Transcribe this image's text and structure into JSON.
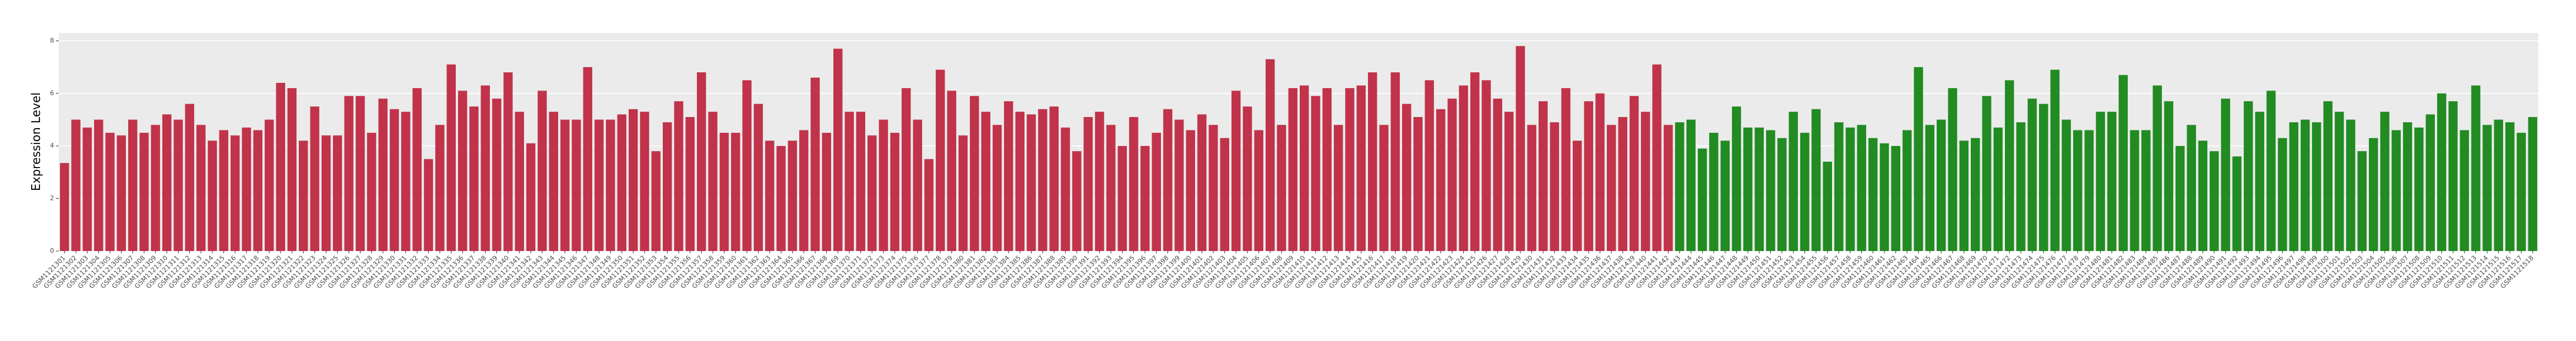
{
  "chart_data": {
    "type": "bar",
    "y_label": "Expression Level",
    "ylim": [
      0,
      8.3
    ],
    "yticks": [
      0,
      2,
      4,
      6,
      8
    ],
    "grid": true,
    "categories": [
      "GSM1121301",
      "GSM1121302",
      "GSM1121303",
      "GSM1121304",
      "GSM1121305",
      "GSM1121306",
      "GSM1121307",
      "GSM1121308",
      "GSM1121309",
      "GSM1121310",
      "GSM1121311",
      "GSM1121312",
      "GSM1121313",
      "GSM1121314",
      "GSM1121315",
      "GSM1121316",
      "GSM1121317",
      "GSM1121318",
      "GSM1121319",
      "GSM1121320",
      "GSM1121321",
      "GSM1121322",
      "GSM1121323",
      "GSM1121324",
      "GSM1121325",
      "GSM1121326",
      "GSM1121327",
      "GSM1121328",
      "GSM1121329",
      "GSM1121330",
      "GSM1121331",
      "GSM1121332",
      "GSM1121333",
      "GSM1121334",
      "GSM1121335",
      "GSM1121336",
      "GSM1121337",
      "GSM1121338",
      "GSM1121339",
      "GSM1121340",
      "GSM1121341",
      "GSM1121342",
      "GSM1121343",
      "GSM1121344",
      "GSM1121345",
      "GSM1121346",
      "GSM1121347",
      "GSM1121348",
      "GSM1121349",
      "GSM1121350",
      "GSM1121351",
      "GSM1121352",
      "GSM1121353",
      "GSM1121354",
      "GSM1121355",
      "GSM1121356",
      "GSM1121357",
      "GSM1121358",
      "GSM1121359",
      "GSM1121360",
      "GSM1121361",
      "GSM1121362",
      "GSM1121363",
      "GSM1121364",
      "GSM1121365",
      "GSM1121366",
      "GSM1121367",
      "GSM1121368",
      "GSM1121369",
      "GSM1121370",
      "GSM1121371",
      "GSM1121372",
      "GSM1121373",
      "GSM1121374",
      "GSM1121375",
      "GSM1121376",
      "GSM1121377",
      "GSM1121378",
      "GSM1121379",
      "GSM1121380",
      "GSM1121381",
      "GSM1121382",
      "GSM1121383",
      "GSM1121384",
      "GSM1121385",
      "GSM1121386",
      "GSM1121387",
      "GSM1121388",
      "GSM1121389",
      "GSM1121390",
      "GSM1121391",
      "GSM1121392",
      "GSM1121393",
      "GSM1121394",
      "GSM1121395",
      "GSM1121396",
      "GSM1121397",
      "GSM1121398",
      "GSM1121399",
      "GSM1121400",
      "GSM1121401",
      "GSM1121402",
      "GSM1121403",
      "GSM1121404",
      "GSM1121405",
      "GSM1121406",
      "GSM1121407",
      "GSM1121408",
      "GSM1121409",
      "GSM1121410",
      "GSM1121411",
      "GSM1121412",
      "GSM1121413",
      "GSM1121414",
      "GSM1121415",
      "GSM1121416",
      "GSM1121417",
      "GSM1121418",
      "GSM1121419",
      "GSM1121420",
      "GSM1121421",
      "GSM1121422",
      "GSM1121423",
      "GSM1121424",
      "GSM1121425",
      "GSM1121426",
      "GSM1121427",
      "GSM1121428",
      "GSM1121429",
      "GSM1121430",
      "GSM1121431",
      "GSM1121432",
      "GSM1121433",
      "GSM1121434",
      "GSM1121435",
      "GSM1121436",
      "GSM1121437",
      "GSM1121438",
      "GSM1121439",
      "GSM1121440",
      "GSM1121441",
      "GSM1121442",
      "GSM1121443",
      "GSM1121444",
      "GSM1121445",
      "GSM1121446",
      "GSM1121447",
      "GSM1121448",
      "GSM1121449",
      "GSM1121450",
      "GSM1121451",
      "GSM1121452",
      "GSM1121453",
      "GSM1121454",
      "GSM1121455",
      "GSM1121456",
      "GSM1121457",
      "GSM1121458",
      "GSM1121459",
      "GSM1121460",
      "GSM1121461",
      "GSM1121462",
      "GSM1121463",
      "GSM1121464",
      "GSM1121465",
      "GSM1121466",
      "GSM1121467",
      "GSM1121468",
      "GSM1121469",
      "GSM1121470",
      "GSM1121471",
      "GSM1121472",
      "GSM1121473",
      "GSM1121474",
      "GSM1121475",
      "GSM1121476",
      "GSM1121477",
      "GSM1121478",
      "GSM1121479",
      "GSM1121480",
      "GSM1121481",
      "GSM1121482",
      "GSM1121483",
      "GSM1121484",
      "GSM1121485",
      "GSM1121486",
      "GSM1121487",
      "GSM1121488",
      "GSM1121489",
      "GSM1121490",
      "GSM1121491",
      "GSM1121492",
      "GSM1121493",
      "GSM1121494",
      "GSM1121495",
      "GSM1121496",
      "GSM1121497",
      "GSM1121498",
      "GSM1121499",
      "GSM1121500",
      "GSM1121501",
      "GSM1121502",
      "GSM1121503",
      "GSM1121504",
      "GSM1121505",
      "GSM1121506",
      "GSM1121507",
      "GSM1121508",
      "GSM1121509",
      "GSM1121510",
      "GSM1121511",
      "GSM1121512",
      "GSM1121513",
      "GSM1121514",
      "GSM1121515",
      "GSM1121516",
      "GSM1121517",
      "GSM1121518"
    ],
    "values": [
      3.35,
      5.0,
      4.7,
      5.0,
      4.5,
      4.4,
      5.0,
      4.5,
      4.8,
      5.2,
      5.0,
      5.6,
      4.8,
      4.2,
      4.6,
      4.4,
      4.7,
      4.6,
      5.0,
      6.4,
      6.2,
      4.2,
      5.5,
      4.4,
      4.4,
      5.9,
      5.9,
      4.5,
      5.8,
      5.4,
      5.3,
      6.2,
      3.5,
      4.8,
      7.1,
      6.1,
      5.5,
      6.3,
      5.8,
      6.8,
      5.3,
      4.1,
      6.1,
      5.3,
      5.0,
      5.0,
      7.0,
      5.0,
      5.0,
      5.2,
      5.4,
      5.3,
      3.8,
      4.9,
      5.7,
      5.1,
      6.8,
      5.3,
      4.5,
      4.5,
      6.5,
      5.6,
      4.2,
      4.0,
      4.2,
      4.6,
      6.6,
      4.5,
      7.7,
      5.3,
      5.3,
      4.4,
      5.0,
      4.5,
      6.2,
      5.0,
      3.5,
      6.9,
      6.1,
      4.4,
      5.9,
      5.3,
      4.8,
      5.7,
      5.3,
      5.2,
      5.4,
      5.5,
      4.7,
      3.8,
      5.1,
      5.3,
      4.8,
      4.0,
      5.1,
      4.0,
      4.5,
      5.4,
      5.0,
      4.6,
      5.2,
      4.8,
      4.3,
      6.1,
      5.5,
      4.6,
      7.3,
      4.8,
      6.2,
      6.3,
      5.9,
      6.2,
      4.8,
      6.2,
      6.3,
      6.8,
      4.8,
      6.8,
      5.6,
      5.1,
      6.5,
      5.4,
      5.8,
      6.3,
      6.8,
      6.5,
      5.8,
      5.3,
      7.8,
      4.8,
      5.7,
      4.9,
      6.2,
      4.2,
      5.7,
      6.0,
      4.8,
      5.1,
      5.9,
      5.3,
      7.1,
      4.8,
      4.9,
      5.0,
      3.9,
      4.5,
      4.2,
      5.5,
      4.7,
      4.7,
      4.6,
      4.3,
      5.3,
      4.5,
      5.4,
      3.4,
      4.9,
      4.7,
      4.8,
      4.3,
      4.1,
      4.0,
      4.6,
      7.0,
      4.8,
      5.0,
      6.2,
      4.2,
      4.3,
      5.9,
      4.7,
      6.5,
      4.9,
      5.8,
      5.6,
      6.9,
      5.0,
      4.6,
      4.6,
      5.3,
      5.3,
      6.7,
      4.6,
      4.6,
      6.3,
      5.7,
      4.0,
      4.8,
      4.2,
      3.8,
      5.8,
      3.6,
      5.7,
      5.3,
      6.1,
      4.3,
      4.9,
      5.0,
      4.9,
      5.7,
      5.3,
      5.0,
      3.8,
      4.3,
      5.3,
      4.6,
      4.9,
      4.7,
      5.2,
      6.0,
      5.7,
      4.6,
      6.3,
      4.8,
      5.0,
      4.9,
      4.5,
      5.1
    ],
    "colors": [
      "#c0334a",
      "#c0334a",
      "#c0334a",
      "#c0334a",
      "#c0334a",
      "#c0334a",
      "#c0334a",
      "#c0334a",
      "#c0334a",
      "#c0334a",
      "#c0334a",
      "#c0334a",
      "#c0334a",
      "#c0334a",
      "#c0334a",
      "#c0334a",
      "#c0334a",
      "#c0334a",
      "#c0334a",
      "#c0334a",
      "#c0334a",
      "#c0334a",
      "#c0334a",
      "#c0334a",
      "#c0334a",
      "#c0334a",
      "#c0334a",
      "#c0334a",
      "#c0334a",
      "#c0334a",
      "#c0334a",
      "#c0334a",
      "#c0334a",
      "#c0334a",
      "#c0334a",
      "#c0334a",
      "#c0334a",
      "#c0334a",
      "#c0334a",
      "#c0334a",
      "#c0334a",
      "#c0334a",
      "#c0334a",
      "#c0334a",
      "#c0334a",
      "#c0334a",
      "#c0334a",
      "#c0334a",
      "#c0334a",
      "#c0334a",
      "#c0334a",
      "#c0334a",
      "#c0334a",
      "#c0334a",
      "#c0334a",
      "#c0334a",
      "#c0334a",
      "#c0334a",
      "#c0334a",
      "#c0334a",
      "#c0334a",
      "#c0334a",
      "#c0334a",
      "#c0334a",
      "#c0334a",
      "#c0334a",
      "#c0334a",
      "#c0334a",
      "#c0334a",
      "#c0334a",
      "#c0334a",
      "#c0334a",
      "#c0334a",
      "#c0334a",
      "#c0334a",
      "#c0334a",
      "#c0334a",
      "#c0334a",
      "#c0334a",
      "#c0334a",
      "#c0334a",
      "#c0334a",
      "#c0334a",
      "#c0334a",
      "#c0334a",
      "#c0334a",
      "#c0334a",
      "#c0334a",
      "#c0334a",
      "#c0334a",
      "#c0334a",
      "#c0334a",
      "#c0334a",
      "#c0334a",
      "#c0334a",
      "#c0334a",
      "#c0334a",
      "#c0334a",
      "#c0334a",
      "#c0334a",
      "#c0334a",
      "#c0334a",
      "#c0334a",
      "#c0334a",
      "#c0334a",
      "#c0334a",
      "#c0334a",
      "#c0334a",
      "#c0334a",
      "#c0334a",
      "#c0334a",
      "#c0334a",
      "#c0334a",
      "#c0334a",
      "#c0334a",
      "#c0334a",
      "#c0334a",
      "#c0334a",
      "#c0334a",
      "#c0334a",
      "#c0334a",
      "#c0334a",
      "#c0334a",
      "#c0334a",
      "#c0334a",
      "#c0334a",
      "#c0334a",
      "#c0334a",
      "#c0334a",
      "#c0334a",
      "#c0334a",
      "#c0334a",
      "#c0334a",
      "#c0334a",
      "#c0334a",
      "#c0334a",
      "#c0334a",
      "#c0334a",
      "#c0334a",
      "#c0334a",
      "#c0334a",
      "#c0334a",
      "#228b22",
      "#228b22",
      "#228b22",
      "#228b22",
      "#228b22",
      "#228b22",
      "#228b22",
      "#228b22",
      "#228b22",
      "#228b22",
      "#228b22",
      "#228b22",
      "#228b22",
      "#228b22",
      "#228b22",
      "#228b22",
      "#228b22",
      "#228b22",
      "#228b22",
      "#228b22",
      "#228b22",
      "#228b22",
      "#228b22",
      "#228b22",
      "#228b22",
      "#228b22",
      "#228b22",
      "#228b22",
      "#228b22",
      "#228b22",
      "#228b22",
      "#228b22",
      "#228b22",
      "#228b22",
      "#228b22",
      "#228b22",
      "#228b22",
      "#228b22",
      "#228b22",
      "#228b22",
      "#228b22",
      "#228b22",
      "#228b22",
      "#228b22",
      "#228b22",
      "#228b22",
      "#228b22",
      "#228b22",
      "#228b22",
      "#228b22",
      "#228b22",
      "#228b22",
      "#228b22",
      "#228b22",
      "#228b22",
      "#228b22",
      "#228b22",
      "#228b22",
      "#228b22",
      "#228b22",
      "#228b22",
      "#228b22",
      "#228b22",
      "#228b22",
      "#228b22",
      "#228b22",
      "#228b22",
      "#228b22",
      "#228b22",
      "#228b22",
      "#228b22",
      "#228b22",
      "#228b22",
      "#228b22",
      "#228b22",
      "#228b22"
    ]
  }
}
